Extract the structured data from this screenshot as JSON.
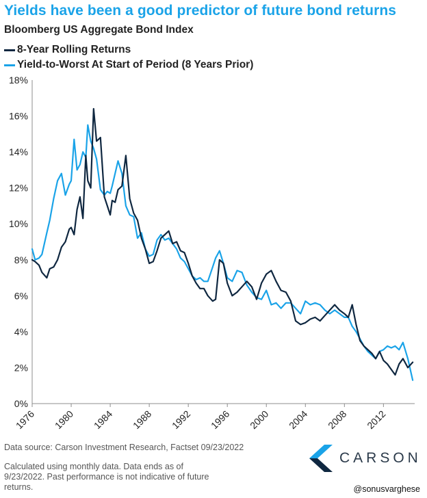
{
  "header": {
    "title": "Yields have been a good predictor of future bond returns",
    "subtitle": "Bloomberg US Aggregate Bond Index"
  },
  "legend": [
    {
      "label": "8-Year Rolling Returns",
      "color": "#0f2740"
    },
    {
      "label": "Yield-to-Worst At Start of Period (8 Years Prior)",
      "color": "#1aa3e8"
    }
  ],
  "footer": {
    "source": "Data source: Carson Investment Research, Factset  09/23/2022",
    "note": "Calculated using monthly data. Data ends as of 9/23/2022. Past performance is not indicative of future returns.",
    "handle": "@sonusvarghese"
  },
  "logo": {
    "text": "CARSON",
    "icon": "carson-chevron-logo-icon"
  },
  "chart_data": {
    "type": "line",
    "title": "Yields have been a good predictor of future bond returns",
    "subtitle": "Bloomberg US Aggregate Bond Index",
    "xlabel": "",
    "ylabel": "",
    "xlim": [
      1976,
      2015.2
    ],
    "ylim": [
      0,
      18
    ],
    "x_ticks": [
      1976,
      1980,
      1984,
      1988,
      1992,
      1996,
      2000,
      2004,
      2008,
      2012
    ],
    "x_tick_labels": [
      "1976",
      "1980",
      "1984",
      "1988",
      "1992",
      "1996",
      "2000",
      "2004",
      "2008",
      "2012"
    ],
    "y_ticks": [
      0,
      2,
      4,
      6,
      8,
      10,
      12,
      14,
      16,
      18
    ],
    "y_tick_labels": [
      "0%",
      "2%",
      "4%",
      "6%",
      "8%",
      "10%",
      "12%",
      "14%",
      "16%",
      "18%"
    ],
    "y_unit": "%",
    "grid": "none",
    "legend_position": "top-left",
    "series": [
      {
        "name": "8-Year Rolling Returns",
        "color": "#0f2740",
        "x": [
          1976.0,
          1976.3,
          1976.7,
          1977.0,
          1977.5,
          1977.8,
          1978.2,
          1978.6,
          1979.0,
          1979.4,
          1979.8,
          1980.0,
          1980.3,
          1980.6,
          1980.9,
          1981.2,
          1981.5,
          1981.7,
          1982.0,
          1982.3,
          1982.6,
          1983.0,
          1983.4,
          1983.7,
          1984.0,
          1984.2,
          1984.5,
          1984.8,
          1985.2,
          1985.6,
          1986.0,
          1986.4,
          1986.8,
          1987.2,
          1987.6,
          1988.0,
          1988.4,
          1988.8,
          1989.2,
          1989.6,
          1990.0,
          1990.4,
          1990.8,
          1991.2,
          1991.6,
          1992.0,
          1992.4,
          1992.8,
          1993.2,
          1993.6,
          1994.0,
          1994.5,
          1994.8,
          1995.2,
          1995.6,
          1996.0,
          1996.5,
          1997.0,
          1997.5,
          1998.0,
          1998.5,
          1999.0,
          1999.5,
          2000.0,
          2000.5,
          2001.0,
          2001.5,
          2002.0,
          2002.5,
          2003.0,
          2003.5,
          2004.0,
          2004.5,
          2005.0,
          2005.5,
          2006.0,
          2006.5,
          2007.0,
          2007.5,
          2008.0,
          2008.4,
          2008.8,
          2009.2,
          2009.6,
          2010.0,
          2010.4,
          2010.8,
          2011.2,
          2011.6,
          2012.0,
          2012.4,
          2012.8,
          2013.2,
          2013.6,
          2014.0,
          2014.5,
          2015.0
        ],
        "y": [
          8.0,
          7.9,
          7.7,
          7.3,
          7.0,
          7.5,
          7.6,
          8.0,
          8.7,
          9.0,
          9.7,
          9.8,
          9.4,
          10.8,
          11.5,
          10.3,
          13.8,
          12.4,
          12.0,
          16.4,
          14.6,
          14.8,
          11.5,
          11.0,
          10.5,
          11.3,
          11.2,
          11.9,
          12.1,
          13.8,
          11.4,
          10.6,
          10.2,
          9.2,
          8.6,
          7.8,
          7.9,
          8.5,
          9.2,
          9.4,
          9.6,
          8.9,
          9.0,
          8.5,
          8.4,
          7.8,
          7.1,
          6.7,
          6.4,
          6.4,
          6.0,
          5.7,
          5.8,
          8.0,
          7.8,
          6.7,
          6.0,
          6.2,
          6.5,
          6.8,
          6.5,
          5.8,
          6.7,
          7.2,
          7.4,
          6.8,
          6.3,
          6.2,
          5.7,
          4.6,
          4.4,
          4.5,
          4.7,
          4.8,
          4.6,
          4.9,
          5.2,
          5.5,
          5.2,
          5.0,
          4.8,
          5.5,
          4.4,
          3.5,
          3.2,
          3.0,
          2.8,
          2.5,
          2.9,
          2.4,
          2.2,
          1.9,
          1.6,
          2.2,
          2.5,
          2.0,
          2.3
        ]
      },
      {
        "name": "Yield-to-Worst At Start of Period (8 Years Prior)",
        "color": "#1aa3e8",
        "x": [
          1976.0,
          1976.3,
          1976.7,
          1977.0,
          1977.5,
          1977.8,
          1978.2,
          1978.6,
          1979.0,
          1979.4,
          1979.8,
          1980.0,
          1980.3,
          1980.6,
          1980.9,
          1981.2,
          1981.5,
          1981.7,
          1982.0,
          1982.3,
          1982.6,
          1983.0,
          1983.4,
          1983.7,
          1984.0,
          1984.2,
          1984.5,
          1984.8,
          1985.2,
          1985.6,
          1986.0,
          1986.4,
          1986.8,
          1987.2,
          1987.6,
          1988.0,
          1988.4,
          1988.8,
          1989.2,
          1989.6,
          1990.0,
          1990.4,
          1990.8,
          1991.2,
          1991.6,
          1992.0,
          1992.4,
          1992.8,
          1993.2,
          1993.6,
          1994.0,
          1994.5,
          1994.8,
          1995.2,
          1995.6,
          1996.0,
          1996.5,
          1997.0,
          1997.5,
          1998.0,
          1998.5,
          1999.0,
          1999.5,
          2000.0,
          2000.5,
          2001.0,
          2001.5,
          2002.0,
          2002.5,
          2003.0,
          2003.5,
          2004.0,
          2004.5,
          2005.0,
          2005.5,
          2006.0,
          2006.5,
          2007.0,
          2007.5,
          2008.0,
          2008.4,
          2008.8,
          2009.2,
          2009.6,
          2010.0,
          2010.4,
          2010.8,
          2011.2,
          2011.6,
          2012.0,
          2012.4,
          2012.8,
          2013.2,
          2013.6,
          2014.0,
          2014.5,
          2015.0
        ],
        "y": [
          8.6,
          8.0,
          8.1,
          8.3,
          9.5,
          10.2,
          11.4,
          12.4,
          12.8,
          11.6,
          12.2,
          12.4,
          14.7,
          13.0,
          13.3,
          14.0,
          13.7,
          15.5,
          14.6,
          14.2,
          13.6,
          11.9,
          11.6,
          11.8,
          11.7,
          12.1,
          12.8,
          13.5,
          12.8,
          11.0,
          10.5,
          10.4,
          9.2,
          9.5,
          8.6,
          8.2,
          8.3,
          9.1,
          9.4,
          9.1,
          9.2,
          8.9,
          8.6,
          8.1,
          7.9,
          7.5,
          7.1,
          6.9,
          7.0,
          6.8,
          6.8,
          7.6,
          8.1,
          8.5,
          7.8,
          7.0,
          6.8,
          7.4,
          7.3,
          6.6,
          6.2,
          5.9,
          5.8,
          6.3,
          5.5,
          5.6,
          5.3,
          5.6,
          5.6,
          5.3,
          5.0,
          5.7,
          5.5,
          5.6,
          5.5,
          5.2,
          5.0,
          5.2,
          5.0,
          4.8,
          4.8,
          4.3,
          4.0,
          3.6,
          3.2,
          2.9,
          2.7,
          2.5,
          2.9,
          3.0,
          3.2,
          3.1,
          3.2,
          3.0,
          3.4,
          2.5,
          1.3
        ]
      }
    ]
  }
}
